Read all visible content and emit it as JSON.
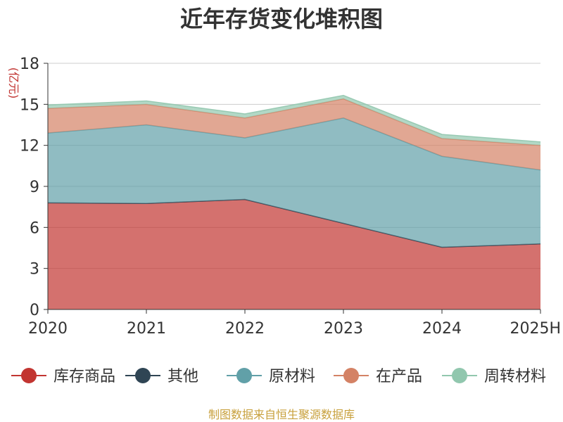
{
  "chart_data": {
    "type": "area",
    "title": "近年存货变化堆积图",
    "ylabel": "(亿元)",
    "xlabel": "",
    "categories": [
      "2020",
      "2021",
      "2022",
      "2023",
      "2024",
      "2025H"
    ],
    "ylim": [
      0,
      18
    ],
    "yticks": [
      0,
      3,
      6,
      9,
      12,
      15,
      18
    ],
    "stacked": true,
    "grid": true,
    "legend_position": "bottom",
    "series": [
      {
        "name": "库存商品",
        "color": "#c23531",
        "values": [
          7.8,
          7.75,
          8.05,
          6.3,
          4.55,
          4.8
        ]
      },
      {
        "name": "其他",
        "color": "#2f4554",
        "values": [
          0.0,
          0.0,
          0.0,
          0.0,
          0.0,
          0.0
        ]
      },
      {
        "name": "原材料",
        "color": "#61a0a8",
        "values": [
          5.1,
          5.75,
          4.5,
          7.7,
          6.65,
          5.4
        ]
      },
      {
        "name": "在产品",
        "color": "#d48265",
        "values": [
          1.8,
          1.5,
          1.45,
          1.4,
          1.3,
          1.8
        ]
      },
      {
        "name": "周转材料",
        "color": "#91c7ae",
        "values": [
          0.25,
          0.25,
          0.3,
          0.25,
          0.3,
          0.25
        ]
      }
    ]
  },
  "source_text": "制图数据来自恒生聚源数据库"
}
